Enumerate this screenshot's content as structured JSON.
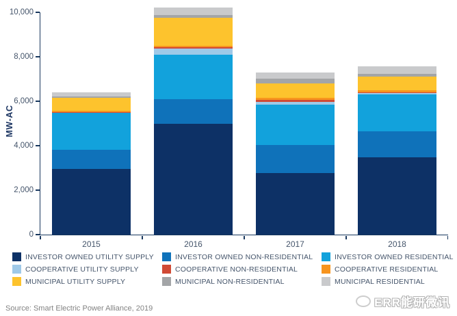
{
  "chart_data": {
    "type": "bar",
    "stacked": true,
    "title": "",
    "xlabel": "",
    "ylabel": "MW-AC",
    "ylim": [
      0,
      10000
    ],
    "ytick_step": 2000,
    "ytick_labels": [
      "0",
      "2,000",
      "4,000",
      "6,000",
      "8,000",
      "10,000"
    ],
    "grid": false,
    "legend_position": "bottom",
    "categories": [
      "2015",
      "2016",
      "2017",
      "2018"
    ],
    "series": [
      {
        "name": "INVESTOR OWNED UTILITY SUPPLY",
        "color": "#0d3166",
        "values": [
          2950,
          5000,
          2760,
          3480
        ]
      },
      {
        "name": "INVESTOR OWNED NON-RESIDENTIAL",
        "color": "#0f72ba",
        "values": [
          860,
          1100,
          1280,
          1160
        ]
      },
      {
        "name": "INVESTOR OWNED RESIDENTIAL",
        "color": "#12a2dc",
        "values": [
          1660,
          2000,
          1800,
          1680
        ]
      },
      {
        "name": "COOPERATIVE UTILITY SUPPLY",
        "color": "#9fc9e8",
        "values": [
          10,
          280,
          130,
          40
        ]
      },
      {
        "name": "COOPERATIVE NON-RESIDENTIAL",
        "color": "#d04a35",
        "values": [
          20,
          40,
          90,
          50
        ]
      },
      {
        "name": "COOPERATIVE RESIDENTIAL",
        "color": "#f7941e",
        "values": [
          80,
          60,
          80,
          80
        ]
      },
      {
        "name": "MUNICIPAL UTILITY SUPPLY",
        "color": "#fdc32d",
        "values": [
          570,
          1290,
          665,
          630
        ]
      },
      {
        "name": "MUNICIPAL NON-RESIDENTIAL",
        "color": "#a3a5a7",
        "values": [
          70,
          120,
          200,
          120
        ]
      },
      {
        "name": "MUNICIPAL RESIDENTIAL",
        "color": "#c9cacc",
        "values": [
          180,
          340,
          280,
          340
        ]
      }
    ]
  },
  "source": {
    "text": "Source: Smart Electric Power Alliance, 2019"
  },
  "watermark": {
    "text": "ERR能研微讯"
  }
}
